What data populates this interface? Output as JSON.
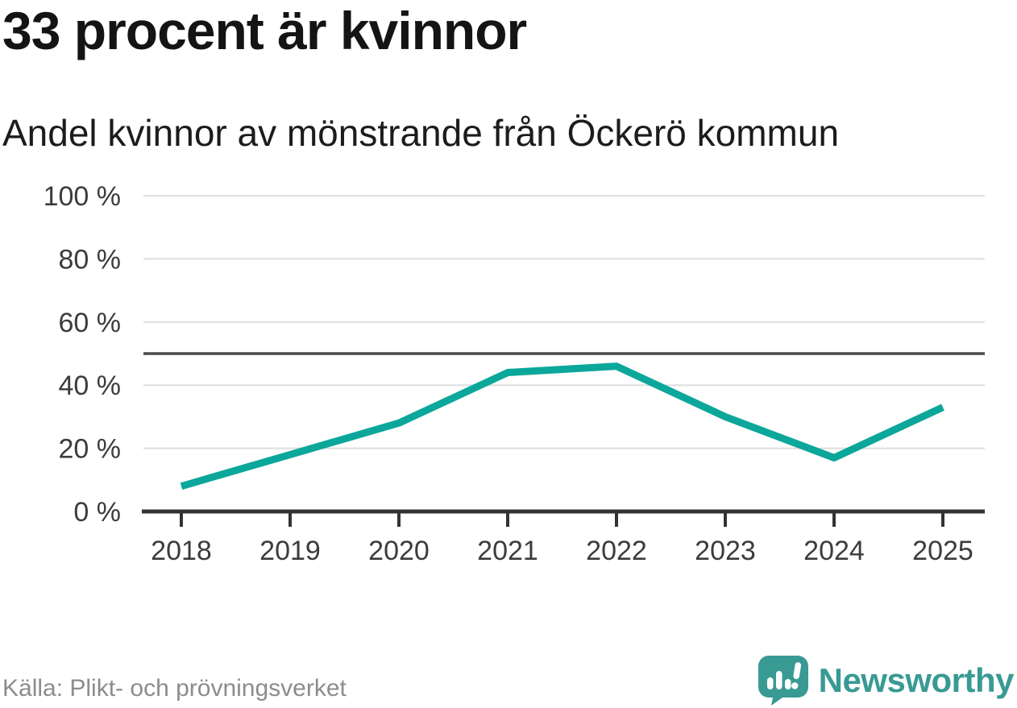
{
  "header": {
    "title": "33 procent är kvinnor",
    "subtitle": "Andel kvinnor av mönstrande från Öckerö kommun"
  },
  "chart_data": {
    "type": "line",
    "title": "33 procent är kvinnor",
    "subtitle": "Andel kvinnor av mönstrande från Öckerö kommun",
    "categories": [
      "2018",
      "2019",
      "2020",
      "2021",
      "2022",
      "2023",
      "2024",
      "2025"
    ],
    "values": [
      8,
      18,
      28,
      44,
      46,
      30,
      17,
      33
    ],
    "xlabel": "",
    "ylabel": "",
    "ylim": [
      0,
      100
    ],
    "yticks": [
      0,
      20,
      40,
      60,
      80,
      100
    ],
    "ytick_suffix": " %",
    "reference_line": 50,
    "grid": true,
    "legend": false,
    "colors": {
      "line": "#0ba79a",
      "reference": "#4a4a4a",
      "grid": "#dedede",
      "axis": "#333333",
      "tick_label": "#3c3c3c"
    }
  },
  "footer": {
    "source": "Källa: Plikt- och prövningsverket",
    "brand": "Newsworthy",
    "brand_color": "#399a93",
    "logo_icon": "newsworthy-speech-bubble-bar-chart-icon"
  }
}
